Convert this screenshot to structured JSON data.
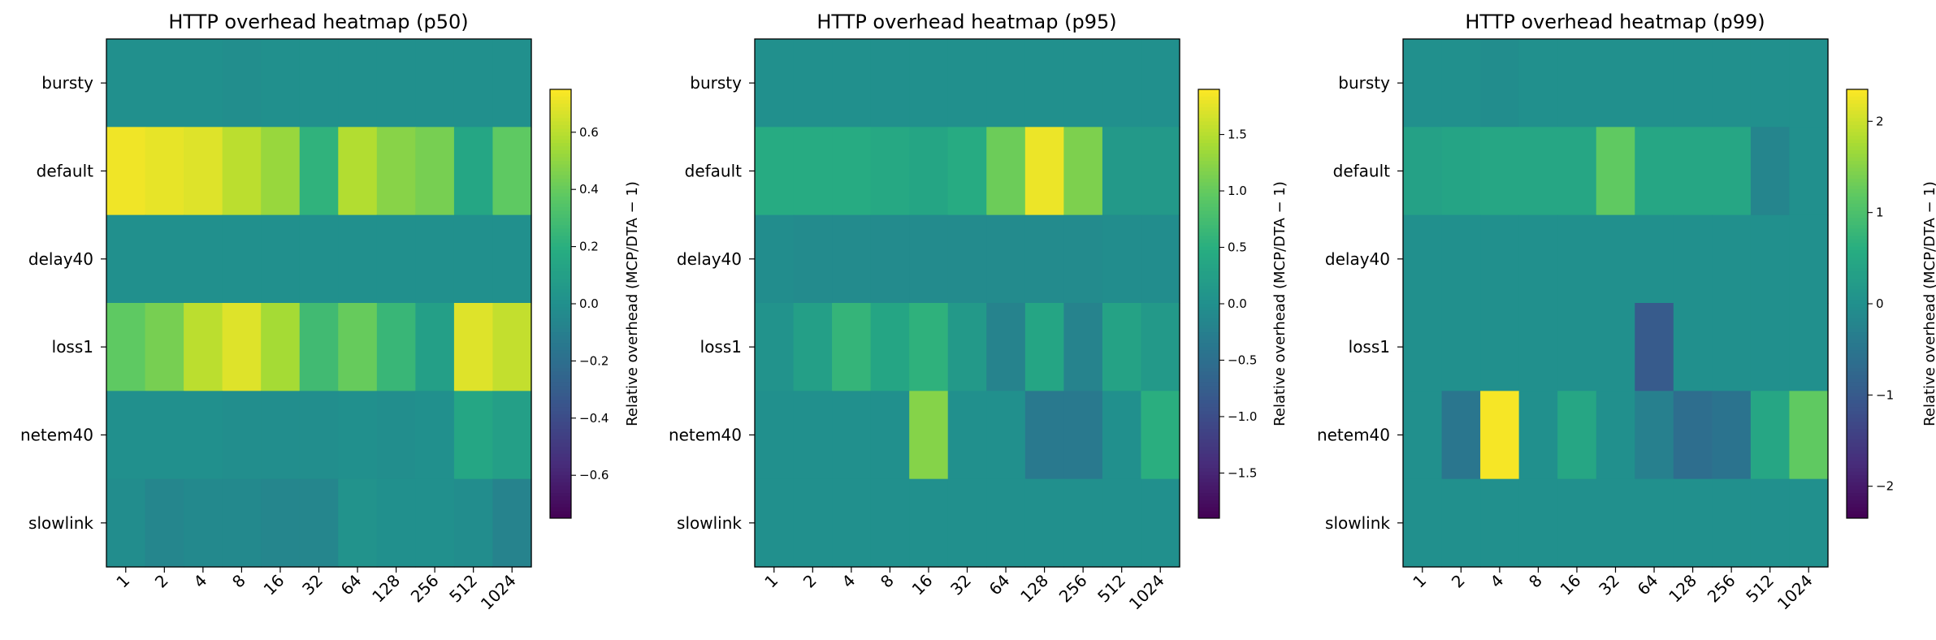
{
  "chart_data": [
    {
      "type": "heatmap",
      "title": "HTTP overhead heatmap (p50)",
      "xlabel": "",
      "ylabel": "",
      "x_categories": [
        "1",
        "2",
        "4",
        "8",
        "16",
        "32",
        "64",
        "128",
        "256",
        "512",
        "1024"
      ],
      "y_categories": [
        "bursty",
        "default",
        "delay40",
        "loss1",
        "netem40",
        "slowlink"
      ],
      "colorbar": {
        "label": "Relative overhead (MCP/DTA − 1)",
        "range": [
          -0.75,
          0.75
        ],
        "ticks": [
          -0.6,
          -0.4,
          -0.2,
          0.0,
          0.2,
          0.4,
          0.6
        ],
        "tick_labels": [
          "−0.6",
          "−0.4",
          "−0.2",
          "0.0",
          "0.2",
          "0.4",
          "0.6"
        ]
      },
      "colormap": "viridis",
      "values": [
        [
          0.0,
          0.0,
          0.0,
          -0.01,
          0.0,
          0.0,
          0.0,
          0.0,
          0.0,
          0.0,
          0.0
        ],
        [
          0.72,
          0.7,
          0.68,
          0.6,
          0.52,
          0.22,
          0.58,
          0.48,
          0.44,
          0.14,
          0.38
        ],
        [
          0.0,
          0.0,
          0.0,
          0.0,
          0.0,
          0.0,
          0.0,
          0.0,
          0.0,
          0.0,
          0.0
        ],
        [
          0.38,
          0.44,
          0.6,
          0.68,
          0.55,
          0.28,
          0.4,
          0.25,
          0.1,
          0.68,
          0.62
        ],
        [
          0.0,
          0.0,
          0.0,
          -0.01,
          -0.01,
          -0.01,
          0.0,
          -0.01,
          0.0,
          0.14,
          0.1
        ],
        [
          -0.02,
          -0.06,
          -0.04,
          -0.04,
          -0.06,
          -0.06,
          0.02,
          0.0,
          0.0,
          -0.02,
          -0.08
        ]
      ]
    },
    {
      "type": "heatmap",
      "title": "HTTP overhead heatmap (p95)",
      "xlabel": "",
      "ylabel": "",
      "x_categories": [
        "1",
        "2",
        "4",
        "8",
        "16",
        "32",
        "64",
        "128",
        "256",
        "512",
        "1024"
      ],
      "y_categories": [
        "bursty",
        "default",
        "delay40",
        "loss1",
        "netem40",
        "slowlink"
      ],
      "colorbar": {
        "label": "Relative overhead (MCP/DTA − 1)",
        "range": [
          -1.9,
          1.9
        ],
        "ticks": [
          -1.5,
          -1.0,
          -0.5,
          0.0,
          0.5,
          1.0,
          1.5
        ],
        "tick_labels": [
          "−1.5",
          "−1.0",
          "−0.5",
          "0.0",
          "0.5",
          "1.0",
          "1.5"
        ]
      },
      "colormap": "viridis",
      "values": [
        [
          0.0,
          0.0,
          0.0,
          0.0,
          0.0,
          0.0,
          0.0,
          0.0,
          0.0,
          0.0,
          0.0
        ],
        [
          0.45,
          0.45,
          0.45,
          0.4,
          0.35,
          0.45,
          1.05,
          1.8,
          1.15,
          0.15,
          0.15
        ],
        [
          -0.05,
          -0.08,
          -0.08,
          -0.08,
          -0.08,
          -0.08,
          -0.08,
          -0.08,
          -0.08,
          -0.05,
          -0.05
        ],
        [
          0.05,
          0.25,
          0.6,
          0.35,
          0.55,
          0.15,
          -0.2,
          0.35,
          -0.2,
          0.3,
          0.15
        ],
        [
          0.0,
          0.0,
          0.0,
          0.0,
          1.2,
          0.0,
          0.0,
          -0.35,
          -0.35,
          0.0,
          0.5
        ],
        [
          0.0,
          0.0,
          0.0,
          0.0,
          0.0,
          0.0,
          0.0,
          0.0,
          0.0,
          0.0,
          0.0
        ]
      ]
    },
    {
      "type": "heatmap",
      "title": "HTTP overhead heatmap (p99)",
      "xlabel": "",
      "ylabel": "",
      "x_categories": [
        "1",
        "2",
        "4",
        "8",
        "16",
        "32",
        "64",
        "128",
        "256",
        "512",
        "1024"
      ],
      "y_categories": [
        "bursty",
        "default",
        "delay40",
        "loss1",
        "netem40",
        "slowlink"
      ],
      "colorbar": {
        "label": "Relative overhead (MCP/DTA − 1)",
        "range": [
          -2.35,
          2.35
        ],
        "ticks": [
          -2,
          -1,
          0,
          1,
          2
        ],
        "tick_labels": [
          "−2",
          "−1",
          "0",
          "1",
          "2"
        ]
      },
      "colormap": "viridis",
      "values": [
        [
          0.0,
          0.0,
          -0.05,
          0.0,
          0.0,
          0.0,
          0.0,
          0.0,
          0.0,
          0.0,
          0.0
        ],
        [
          0.35,
          0.4,
          0.45,
          0.45,
          0.45,
          1.2,
          0.45,
          0.45,
          0.45,
          -0.2,
          0.0
        ],
        [
          0.0,
          0.0,
          0.0,
          0.0,
          0.0,
          0.0,
          0.0,
          0.0,
          0.0,
          0.0,
          0.0
        ],
        [
          0.0,
          0.0,
          0.0,
          0.0,
          0.0,
          0.0,
          -1.0,
          0.0,
          0.0,
          0.0,
          0.0
        ],
        [
          0.0,
          -0.5,
          2.3,
          0.0,
          0.45,
          0.0,
          -0.3,
          -0.65,
          -0.55,
          0.45,
          1.2
        ],
        [
          0.0,
          0.0,
          0.0,
          0.0,
          0.0,
          0.0,
          0.0,
          0.0,
          0.0,
          0.0,
          0.0
        ]
      ]
    }
  ]
}
